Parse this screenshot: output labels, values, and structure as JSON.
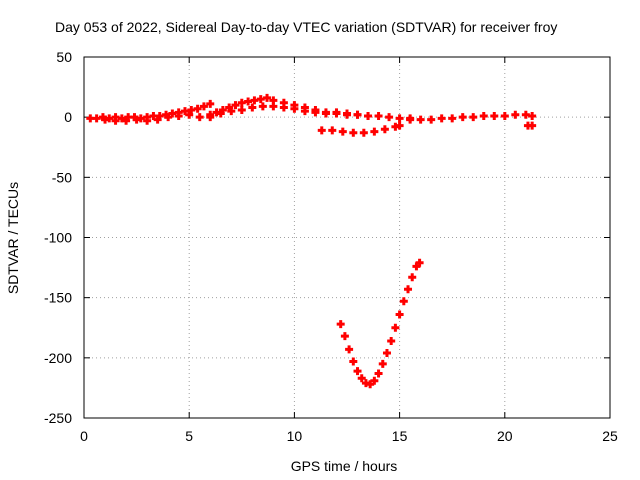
{
  "chart_data": {
    "type": "scatter",
    "title": "Day 053 of 2022, Sidereal Day-to-day VTEC variation (SDTVAR) for receiver froy",
    "xlabel": "GPS time / hours",
    "ylabel": "SDTVAR / TECUs",
    "xlim": [
      0,
      25
    ],
    "ylim": [
      -250,
      50
    ],
    "xticks": [
      0,
      5,
      10,
      15,
      20,
      25
    ],
    "yticks": [
      50,
      0,
      -50,
      -100,
      -150,
      -200,
      -250
    ],
    "grid": true,
    "marker": "+",
    "color": "#ff0000",
    "series": [
      {
        "points": [
          [
            0.3,
            -1
          ],
          [
            0.6,
            -1
          ],
          [
            0.9,
            0
          ],
          [
            1.2,
            -1
          ],
          [
            1.5,
            0
          ],
          [
            1.8,
            -1
          ],
          [
            2.1,
            0
          ],
          [
            2.4,
            0
          ],
          [
            2.7,
            -1
          ],
          [
            3.0,
            0
          ],
          [
            3.3,
            1
          ],
          [
            3.6,
            1
          ],
          [
            3.9,
            2
          ],
          [
            4.2,
            3
          ],
          [
            4.5,
            4
          ],
          [
            4.8,
            5
          ],
          [
            5.1,
            6
          ],
          [
            5.4,
            7
          ],
          [
            5.7,
            9
          ],
          [
            6.0,
            11
          ],
          [
            6.0,
            2
          ],
          [
            6.3,
            4
          ],
          [
            6.6,
            6
          ],
          [
            6.9,
            8
          ],
          [
            7.2,
            10
          ],
          [
            7.5,
            12
          ],
          [
            7.8,
            13
          ],
          [
            8.1,
            14
          ],
          [
            8.4,
            15
          ],
          [
            8.7,
            16
          ],
          [
            1.0,
            -2
          ],
          [
            1.5,
            -3
          ],
          [
            2.0,
            -3
          ],
          [
            2.5,
            -2
          ],
          [
            3.0,
            -3
          ],
          [
            3.5,
            -2
          ],
          [
            4.0,
            0
          ],
          [
            4.5,
            1
          ],
          [
            5.0,
            2
          ],
          [
            5.5,
            0
          ],
          [
            6.0,
            0
          ],
          [
            6.5,
            3
          ],
          [
            7.0,
            5
          ],
          [
            7.5,
            6
          ],
          [
            8.0,
            8
          ],
          [
            8.5,
            9
          ],
          [
            9.0,
            9
          ],
          [
            9.5,
            8
          ],
          [
            10.0,
            7
          ],
          [
            10.5,
            5
          ],
          [
            9.0,
            14
          ],
          [
            9.5,
            12
          ],
          [
            10.0,
            10
          ],
          [
            10.5,
            8
          ],
          [
            11.0,
            6
          ],
          [
            11.5,
            4
          ],
          [
            12.0,
            3
          ],
          [
            12.5,
            2
          ],
          [
            13.0,
            2
          ],
          [
            13.5,
            1
          ],
          [
            11.0,
            4
          ],
          [
            11.5,
            3
          ],
          [
            12.0,
            4
          ],
          [
            12.5,
            3
          ],
          [
            13.0,
            2
          ],
          [
            13.5,
            1
          ],
          [
            14.0,
            1
          ],
          [
            14.5,
            0
          ],
          [
            15.0,
            -1
          ],
          [
            15.5,
            -1
          ],
          [
            11.3,
            -11
          ],
          [
            11.8,
            -11
          ],
          [
            12.3,
            -12
          ],
          [
            12.8,
            -13
          ],
          [
            13.3,
            -13
          ],
          [
            13.8,
            -12
          ],
          [
            14.3,
            -10
          ],
          [
            14.8,
            -8
          ],
          [
            15.0,
            -7
          ],
          [
            15.5,
            -2
          ],
          [
            16.0,
            -2
          ],
          [
            16.5,
            -2
          ],
          [
            17.0,
            -1
          ],
          [
            17.5,
            -1
          ],
          [
            18.0,
            0
          ],
          [
            18.5,
            0
          ],
          [
            19.0,
            1
          ],
          [
            19.5,
            1
          ],
          [
            20.0,
            1
          ],
          [
            20.5,
            2
          ],
          [
            21.0,
            2
          ],
          [
            21.3,
            1
          ],
          [
            21.1,
            -7
          ],
          [
            21.3,
            -7
          ],
          [
            12.2,
            -172
          ],
          [
            12.4,
            -182
          ],
          [
            12.6,
            -193
          ],
          [
            12.8,
            -203
          ],
          [
            13.0,
            -211
          ],
          [
            13.2,
            -217
          ],
          [
            13.4,
            -221
          ],
          [
            13.6,
            -222
          ],
          [
            13.8,
            -219
          ],
          [
            14.0,
            -213
          ],
          [
            14.2,
            -205
          ],
          [
            14.4,
            -196
          ],
          [
            14.6,
            -186
          ],
          [
            14.8,
            -175
          ],
          [
            15.0,
            -164
          ],
          [
            15.2,
            -153
          ],
          [
            15.4,
            -143
          ],
          [
            15.6,
            -133
          ],
          [
            15.8,
            -124
          ],
          [
            15.95,
            -121
          ]
        ]
      }
    ]
  }
}
